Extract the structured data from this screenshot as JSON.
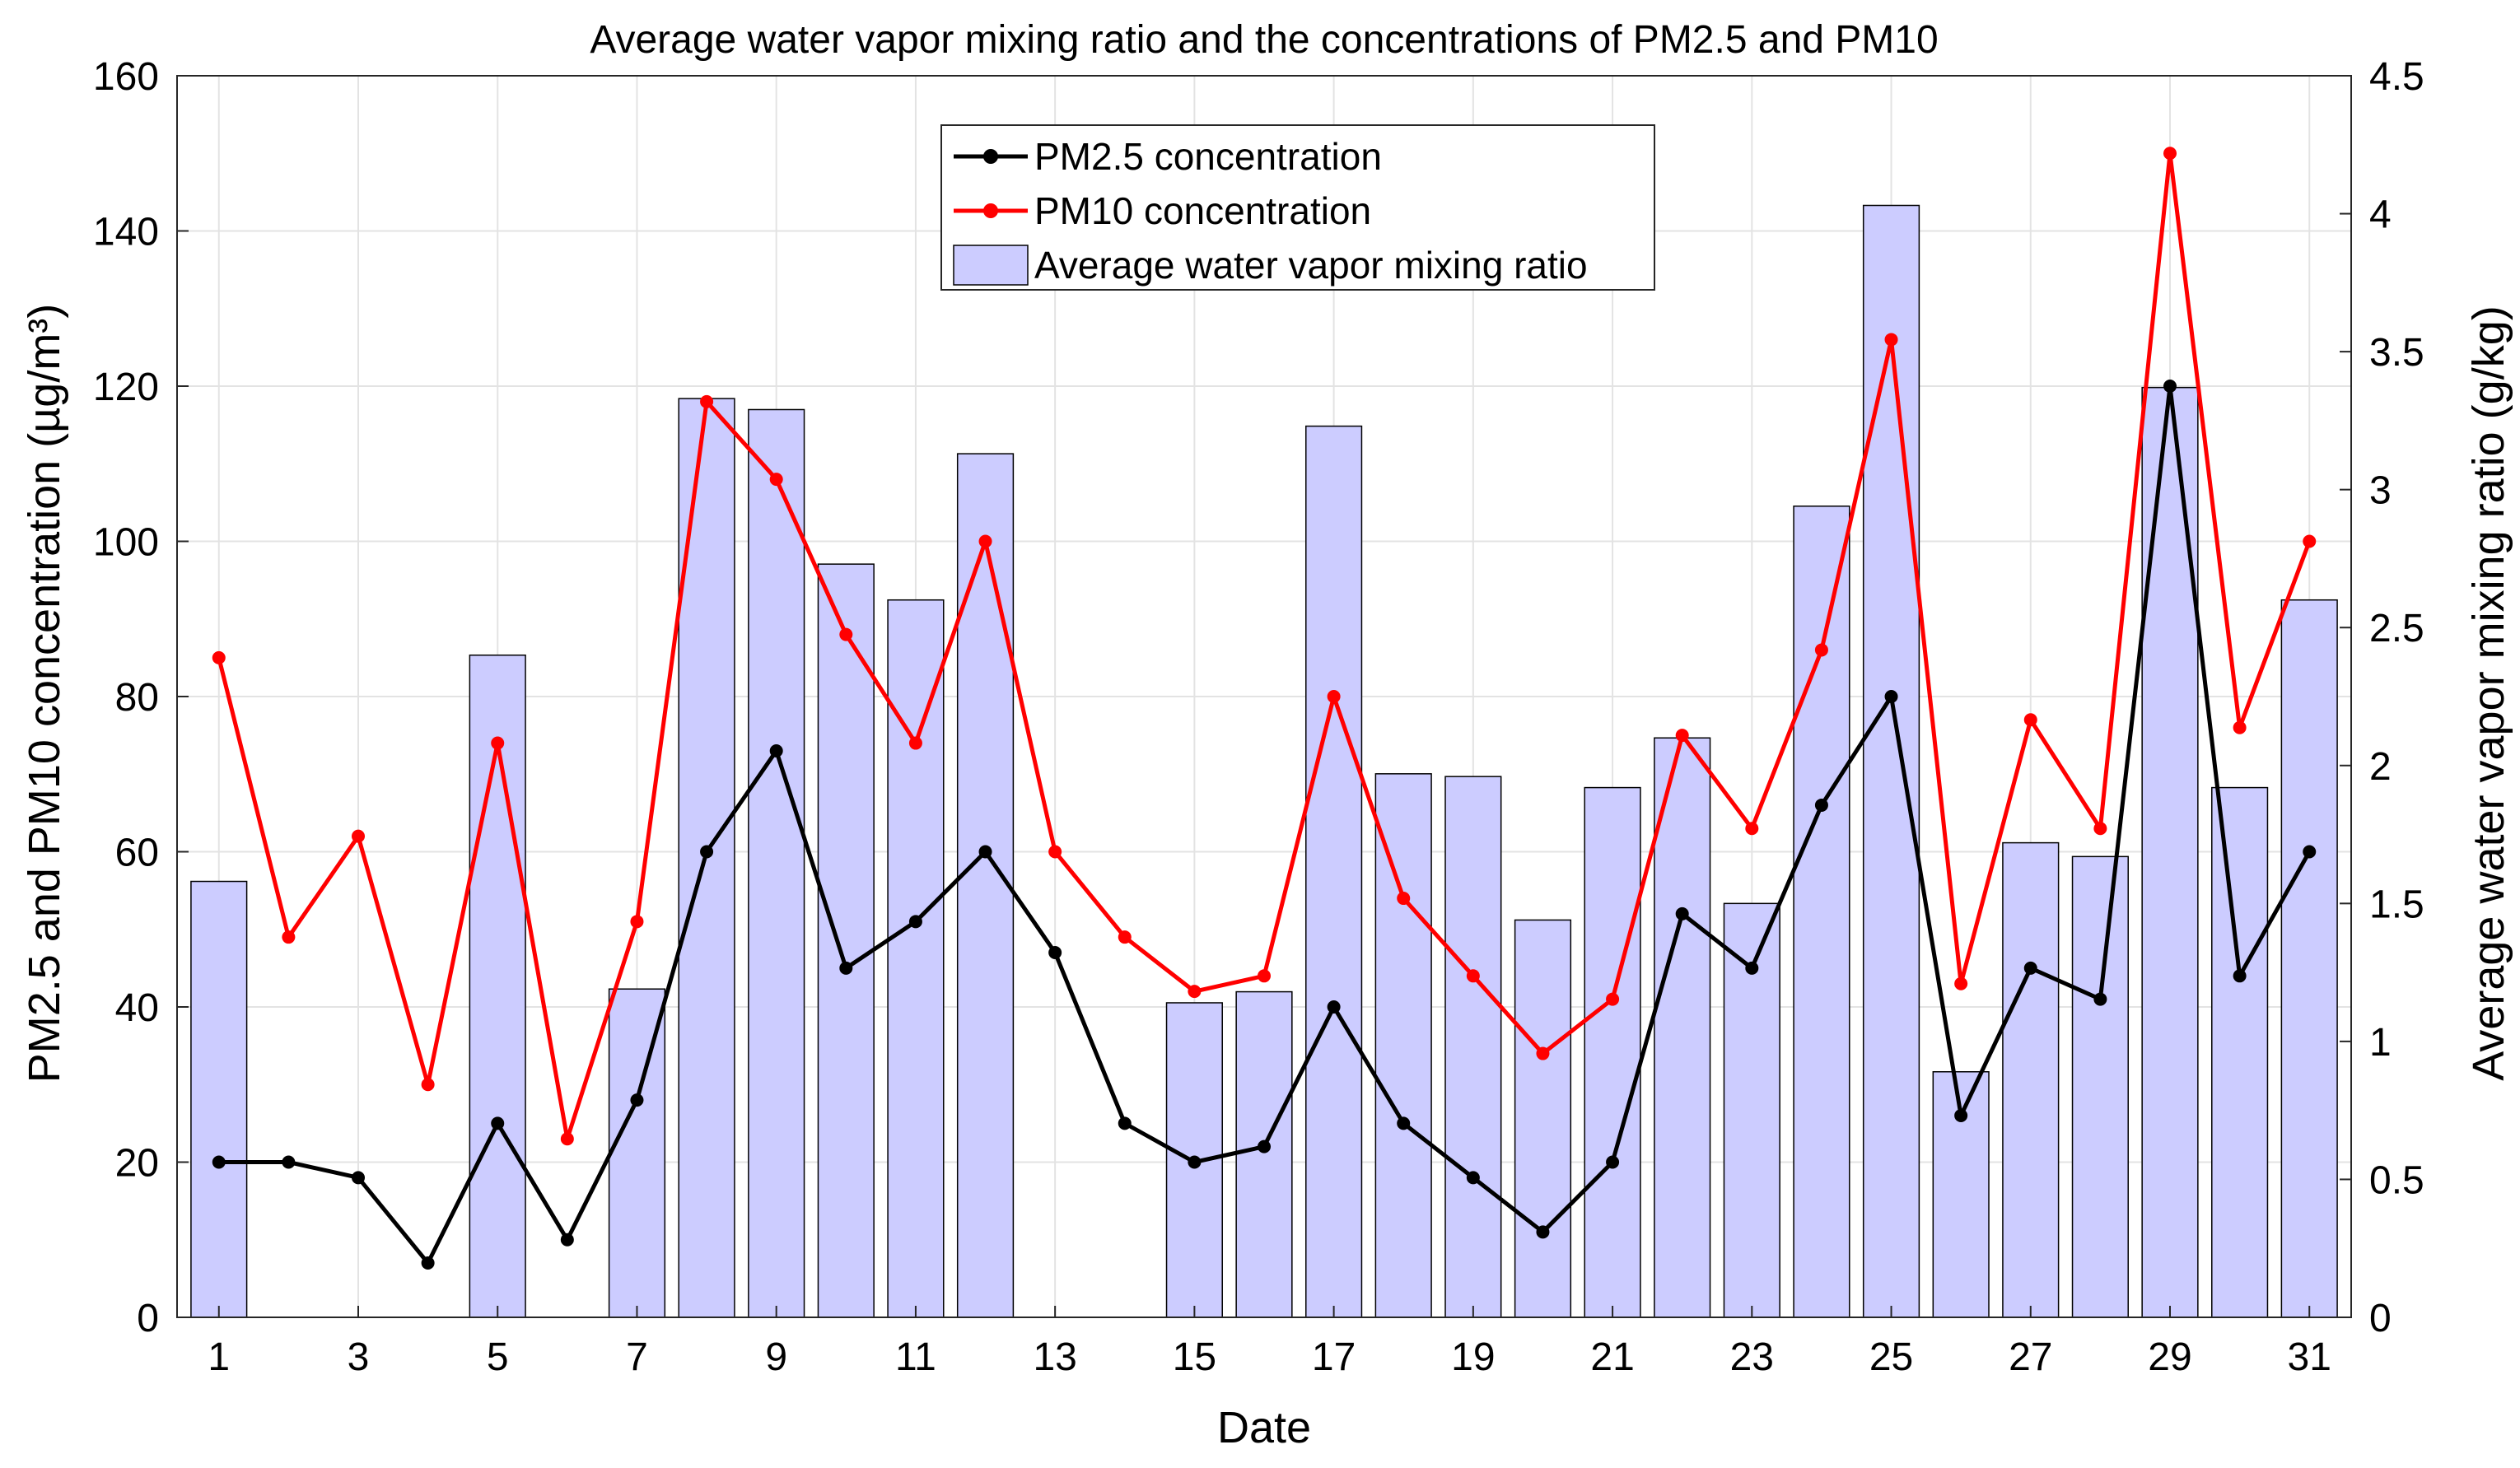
{
  "chart_data": {
    "type": "bar+line",
    "title": "Average water vapor mixing ratio and the concentrations of PM2.5 and PM10",
    "xlabel": "Date",
    "ylabel_left": "PM2.5 and PM10 concentration (µg/m³)",
    "ylabel_right": "Average water vapor mixing ratio (g/kg)",
    "x": [
      1,
      2,
      3,
      4,
      5,
      6,
      7,
      8,
      9,
      10,
      11,
      12,
      13,
      14,
      15,
      16,
      17,
      18,
      19,
      20,
      21,
      22,
      23,
      24,
      25,
      26,
      27,
      28,
      29,
      30,
      31
    ],
    "xticks": [
      1,
      3,
      5,
      7,
      9,
      11,
      13,
      15,
      17,
      19,
      21,
      23,
      25,
      27,
      29,
      31
    ],
    "ylim_left": [
      0,
      160
    ],
    "yticks_left": [
      0,
      20,
      40,
      60,
      80,
      100,
      120,
      140,
      160
    ],
    "ylim_right": [
      0,
      4.5
    ],
    "yticks_right": [
      "0",
      "0.5",
      "1",
      "1.5",
      "2",
      "2.5",
      "3",
      "3.5",
      "4",
      "4.5"
    ],
    "grid": true,
    "legend_position": "top-center",
    "series": [
      {
        "name": "PM2.5 concentration",
        "type": "line",
        "axis": "left",
        "color": "#000000",
        "values": [
          20,
          20,
          18,
          7,
          25,
          10,
          28,
          60,
          73,
          45,
          51,
          60,
          47,
          25,
          20,
          22,
          40,
          25,
          18,
          11,
          20,
          52,
          45,
          66,
          80,
          26,
          45,
          41,
          120,
          44,
          60
        ]
      },
      {
        "name": "PM10 concentration",
        "type": "line",
        "axis": "left",
        "color": "#ff0000",
        "values": [
          85,
          49,
          62,
          30,
          74,
          23,
          51,
          118,
          108,
          88,
          74,
          100,
          60,
          49,
          42,
          44,
          80,
          54,
          44,
          34,
          41,
          75,
          63,
          86,
          126,
          43,
          77,
          63,
          150,
          76,
          100
        ]
      },
      {
        "name": "Average water vapor mixing ratio",
        "type": "bar",
        "axis": "right",
        "color": "#ccccff",
        "values": [
          1.58,
          null,
          null,
          null,
          2.4,
          null,
          1.19,
          3.33,
          3.29,
          2.73,
          2.6,
          3.13,
          null,
          null,
          1.14,
          1.18,
          3.23,
          1.97,
          1.96,
          1.44,
          1.92,
          2.1,
          1.5,
          2.94,
          4.03,
          0.89,
          1.72,
          1.67,
          3.37,
          1.92,
          2.6
        ]
      }
    ]
  }
}
